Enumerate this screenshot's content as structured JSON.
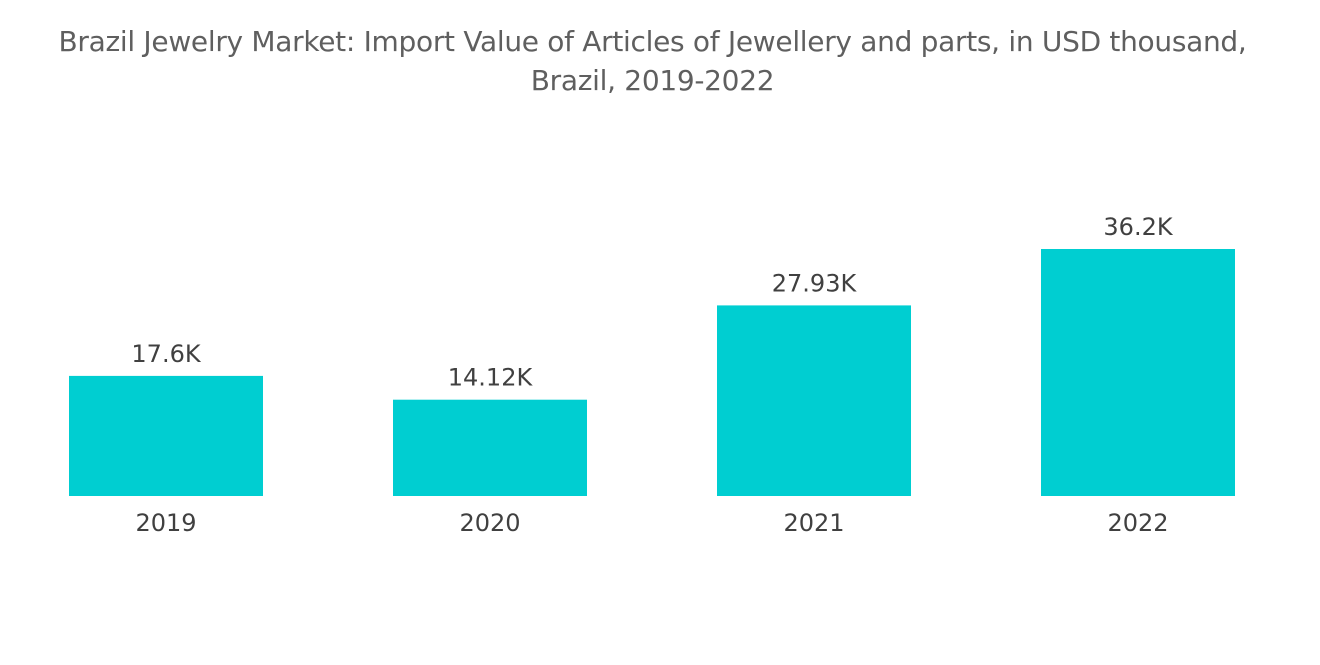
{
  "chart_data": {
    "type": "bar",
    "title": "Brazil Jewelry Market: Import Value of Articles of Jewellery and parts, in USD thousand, Brazil, 2019-2022",
    "title_lines": [
      "Brazil Jewelry Market: Import Value of Articles of Jewellery and parts, in USD thousand,",
      "Brazil, 2019-2022"
    ],
    "categories": [
      "2019",
      "2020",
      "2021",
      "2022"
    ],
    "values": [
      17.6,
      14.12,
      27.93,
      36.2
    ],
    "data_labels": [
      "17.6K",
      "14.12K",
      "27.93K",
      "36.2K"
    ],
    "units": "USD thousand",
    "xlabel": "",
    "ylabel": "",
    "ylim": [
      0,
      36.2
    ],
    "grid": false,
    "legend": "none",
    "bar_color": "#00ced1"
  }
}
